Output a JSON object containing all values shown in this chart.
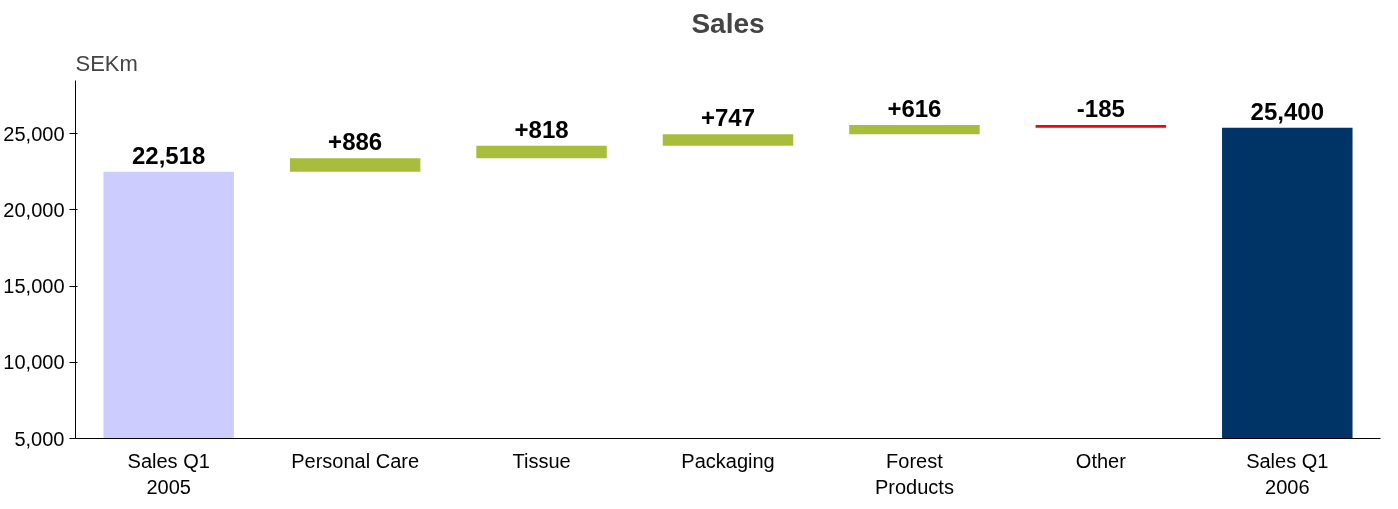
{
  "chart_data": {
    "type": "bar",
    "title": "Sales",
    "ylabel": "SEKm",
    "categories": [
      "Sales Q1\n2005",
      "Personal Care",
      "Tissue",
      "Packaging",
      "Forest\nProducts",
      "Other",
      "Sales Q1\n2006"
    ],
    "values": [
      22518,
      886,
      818,
      747,
      616,
      -185,
      25400
    ],
    "base": [
      null,
      22518,
      23404,
      24222,
      24969,
      25585,
      null
    ],
    "colors": [
      "#ccccff",
      "#a9bd3c",
      "#a9bd3c",
      "#a9bd3c",
      "#a9bd3c",
      "#ff0000",
      "#003366"
    ],
    "value_labels": [
      "22,518",
      "+886",
      "+818",
      "+747",
      "+616",
      "-185",
      "25,400"
    ],
    "ylim": [
      5000,
      28500
    ],
    "yticks": [
      {
        "value": 5000,
        "label": "5,000"
      },
      {
        "value": 10000,
        "label": "10,000"
      },
      {
        "value": 15000,
        "label": "15,000"
      },
      {
        "value": 20000,
        "label": "20,000"
      },
      {
        "value": 25000,
        "label": "25,000"
      }
    ],
    "grid": false
  }
}
